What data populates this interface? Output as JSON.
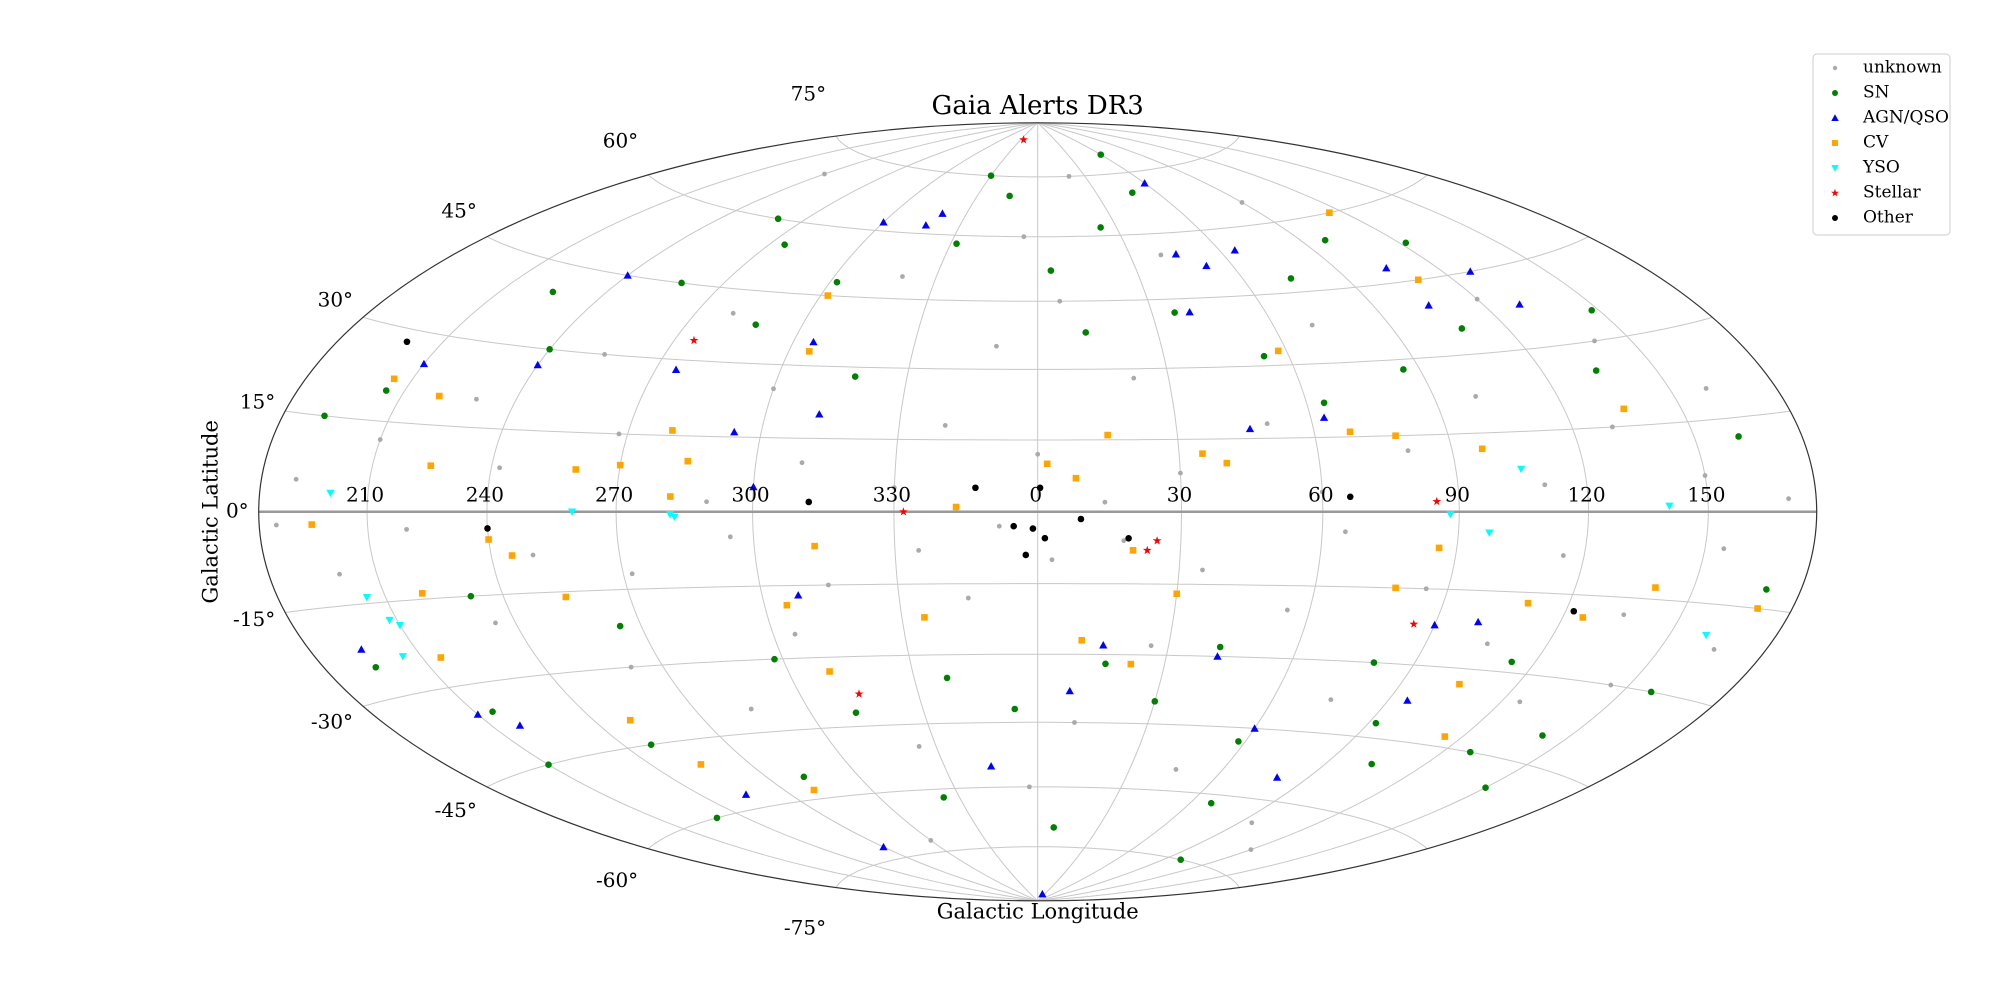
{
  "chart_data": {
    "type": "scatter",
    "projection": "hammer",
    "title": "Gaia Alerts DR3",
    "x_label": "Galactic Longitude",
    "y_label": "Galactic Latitude",
    "xlim": [
      -180,
      180
    ],
    "ylim": [
      -90,
      90
    ],
    "xticks": [
      {
        "value": -150,
        "label": "210"
      },
      {
        "value": -120,
        "label": "240"
      },
      {
        "value": -90,
        "label": "270"
      },
      {
        "value": -60,
        "label": "300"
      },
      {
        "value": -30,
        "label": "330"
      },
      0,
      30,
      60,
      90,
      120,
      150
    ],
    "yticks": [
      {
        "value": -75,
        "label": "-75°"
      },
      {
        "value": -60,
        "label": "-60°"
      },
      {
        "value": -45,
        "label": "-45°"
      },
      {
        "value": -30,
        "label": "-30°"
      },
      {
        "value": -15,
        "label": "-15°"
      },
      {
        "value": 0,
        "label": "0°"
      },
      {
        "value": 15,
        "label": "15°"
      },
      {
        "value": 30,
        "label": "30°"
      },
      {
        "value": 45,
        "label": "45°"
      },
      {
        "value": 60,
        "label": "60°"
      },
      {
        "value": 75,
        "label": "75°"
      }
    ],
    "grid": true,
    "legend": "upper right",
    "series": [
      {
        "name": "unknown",
        "color": "#aaaaaa",
        "marker": "circle",
        "x": [
          -170,
          -160,
          -150,
          -140,
          -130,
          -125,
          -118,
          -110,
          -105,
          -98,
          -92,
          -88,
          -80,
          -75,
          -70,
          -65,
          -60,
          -55,
          -50,
          -45,
          -40,
          -35,
          -30,
          -25,
          -20,
          -15,
          -10,
          -8,
          -5,
          -3,
          0,
          3,
          6,
          10,
          14,
          18,
          22,
          26,
          30,
          35,
          40,
          45,
          50,
          55,
          60,
          65,
          70,
          75,
          80,
          85,
          90,
          95,
          100,
          105,
          110,
          115,
          120,
          125,
          130,
          135,
          140,
          145,
          150,
          155,
          160,
          165,
          172,
          -175,
          20,
          -60,
          120,
          -120
        ],
        "values": [
          5,
          -10,
          12,
          -3,
          20,
          -20,
          8,
          -8,
          30,
          -30,
          15,
          -12,
          40,
          -40,
          2,
          -5,
          25,
          -25,
          10,
          -15,
          50,
          -50,
          5,
          -8,
          18,
          -18,
          35,
          -3,
          60,
          -60,
          12,
          -10,
          45,
          -45,
          2,
          -6,
          28,
          -28,
          8,
          -12,
          55,
          -55,
          18,
          -20,
          4,
          -4,
          38,
          -38,
          12,
          -15,
          65,
          -65,
          22,
          -25,
          5,
          -8,
          40,
          -35,
          15,
          -18,
          30,
          -30,
          6,
          -6,
          20,
          -22,
          2,
          -2,
          75,
          -72,
          -70,
          70
        ]
      },
      {
        "name": "SN",
        "color": "#008000",
        "marker": "circle",
        "x": [
          -165,
          -155,
          -145,
          -135,
          -128,
          -120,
          -112,
          -102,
          -95,
          -85,
          -78,
          -72,
          -62,
          -58,
          -48,
          -42,
          -36,
          -28,
          -22,
          -14,
          -6,
          4,
          8,
          12,
          16,
          24,
          30,
          36,
          42,
          48,
          54,
          58,
          64,
          68,
          74,
          80,
          86,
          92,
          98,
          104,
          108,
          114,
          122,
          128,
          134,
          142,
          148,
          158,
          162,
          170,
          -168,
          -150,
          -100,
          -30,
          60,
          150,
          100,
          -130
        ],
        "values": [
          -25,
          20,
          -35,
          40,
          -15,
          30,
          -45,
          45,
          -22,
          55,
          -55,
          38,
          -30,
          48,
          -42,
          28,
          -62,
          58,
          -35,
          70,
          -42,
          52,
          -70,
          38,
          -32,
          62,
          -40,
          42,
          -28,
          70,
          32,
          -48,
          22,
          -62,
          48,
          -30,
          28,
          -42,
          55,
          -50,
          35,
          -28,
          52,
          -45,
          25,
          -40,
          35,
          -30,
          12,
          -12,
          15,
          -45,
          60,
          75,
          80,
          -50,
          -75,
          -60
        ]
      },
      {
        "name": "AGN/QSO",
        "color": "#0000ff",
        "marker": "triangle-up",
        "x": [
          60,
          45,
          52,
          65,
          -40,
          -43,
          -60,
          -120,
          -150,
          -120,
          -85,
          -55,
          -48,
          -66,
          -60,
          40,
          46,
          63,
          105,
          105,
          128,
          130,
          -52,
          -165,
          -150,
          -142,
          -105,
          -90,
          -15,
          8,
          15,
          42,
          60,
          80,
          90,
          100,
          95,
          20
        ],
        "values": [
          72,
          55,
          52,
          55,
          65,
          62,
          62,
          45,
          25,
          27,
          28,
          35,
          20,
          16,
          5,
          42,
          17,
          19,
          48,
          40,
          45,
          38,
          -17,
          -22,
          -35,
          -38,
          -57,
          -72,
          -55,
          -38,
          -28,
          -30,
          -45,
          -55,
          -22,
          -21,
          -37,
          -88
        ]
      },
      {
        "name": "CV",
        "color": "#ffa500",
        "marker": "square",
        "x": [
          115,
          110,
          -58,
          -55,
          58,
          -155,
          -140,
          -135,
          -100,
          -90,
          -80,
          -75,
          -78,
          2,
          8,
          15,
          35,
          40,
          68,
          78,
          97,
          135,
          -17,
          -165,
          -120,
          -115,
          -140,
          -105,
          -47,
          -55,
          -25,
          20,
          30,
          86,
          78,
          110,
          140,
          170,
          125,
          105,
          115,
          10,
          22,
          -50,
          -110,
          -145,
          -105,
          -80
        ],
        "values": [
          60,
          45,
          45,
          33,
          33,
          22,
          20,
          8,
          8,
          9,
          16,
          10,
          3,
          10,
          7,
          16,
          12,
          10,
          16,
          15,
          12,
          18,
          1,
          -2,
          -5,
          -8,
          -14,
          -16,
          -7,
          -19,
          -22,
          -8,
          -17,
          -7,
          -15,
          -17,
          -13,
          -15,
          -19,
          -33,
          -43,
          -27,
          -32,
          -33,
          -40,
          -25,
          -50,
          -58
        ]
      },
      {
        "name": "YSO",
        "color": "#00ffff",
        "marker": "triangle-down",
        "x": [
          -160,
          -100,
          -78,
          -77,
          88,
          97,
          105,
          140,
          160,
          -155,
          -150,
          -152,
          -155
        ],
        "values": [
          3,
          0,
          -0.5,
          -1,
          -0.5,
          -4,
          8,
          1,
          -20,
          -14,
          -19,
          -18,
          -24
        ]
      },
      {
        "name": "Stellar",
        "color": "#ff0000",
        "marker": "star",
        "x": [
          -25,
          -85,
          -28,
          25,
          23,
          85,
          85,
          -45
        ],
        "values": [
          85,
          34,
          0,
          -6,
          -8,
          2,
          -22,
          -38
        ]
      },
      {
        "name": "Other",
        "color": "#000000",
        "marker": "circle",
        "x": [
          0.5,
          -13,
          -48,
          -5,
          -1,
          1.5,
          9,
          -2.5,
          19,
          66,
          -120,
          -160,
          122
        ],
        "values": [
          5,
          5,
          2,
          -3,
          -3.5,
          -5.5,
          -1.5,
          -9,
          -5.5,
          3,
          -3,
          28,
          -18
        ]
      }
    ]
  }
}
